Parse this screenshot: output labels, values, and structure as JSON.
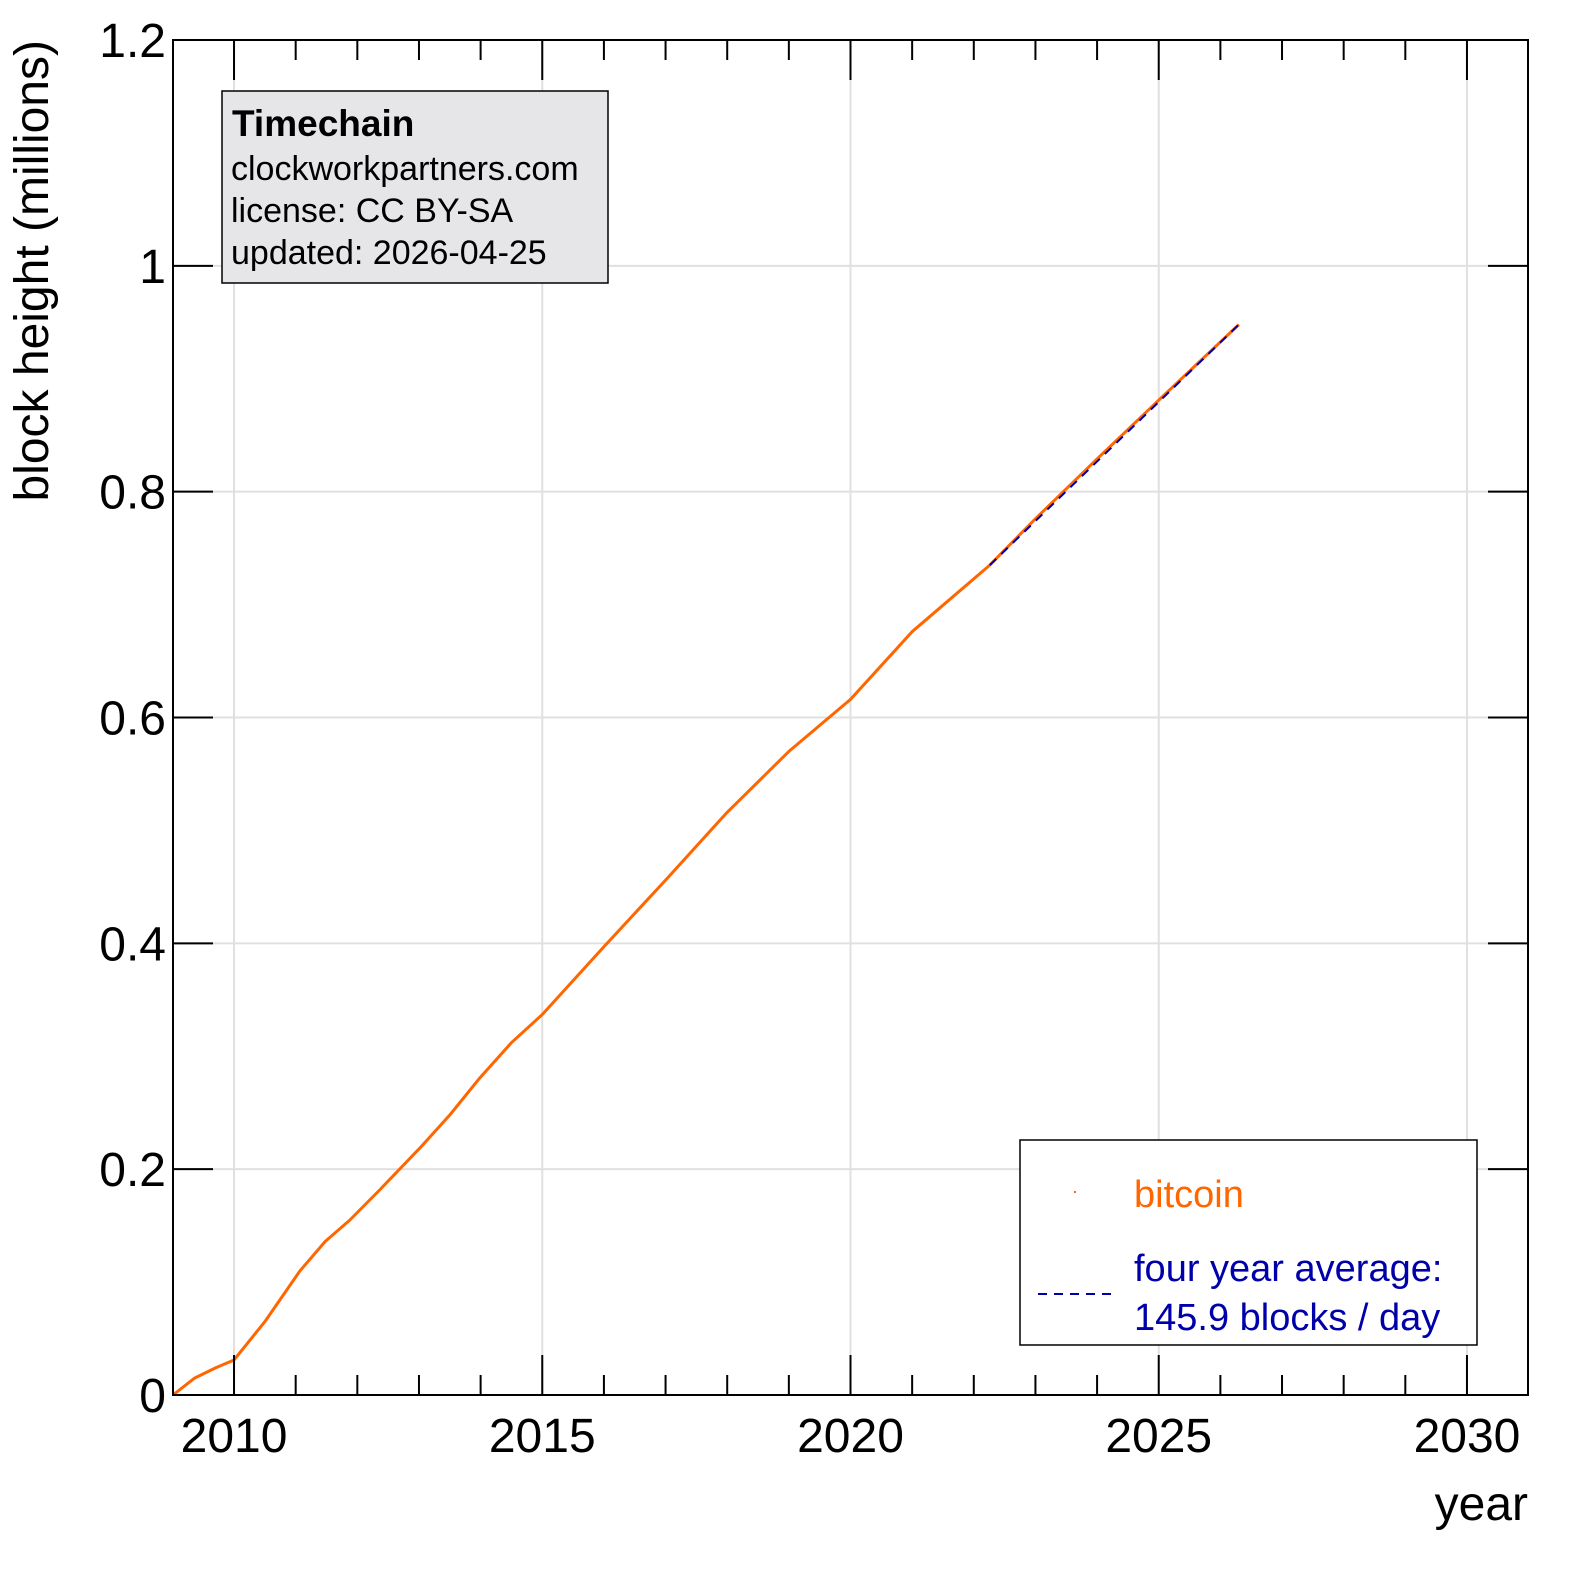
{
  "chart_data": {
    "type": "line",
    "title": "",
    "xlabel": "year",
    "ylabel": "block height (millions)",
    "xlim": [
      2009.01,
      2030.99
    ],
    "ylim": [
      0,
      1.2
    ],
    "grid": true,
    "x_ticks": [
      2010,
      2015,
      2020,
      2025,
      2030
    ],
    "x_tick_labels": [
      "2010",
      "2015",
      "2020",
      "2025",
      "2030"
    ],
    "y_ticks": [
      0,
      0.2,
      0.4,
      0.6,
      0.8,
      1,
      1.2
    ],
    "y_tick_labels": [
      "0",
      "0.2",
      "0.4",
      "0.6",
      "0.8",
      "1",
      "1.2"
    ],
    "legend_position": "bottom-right",
    "series": [
      {
        "name": "bitcoin",
        "color": "#ff6600",
        "style": "solid",
        "x": [
          2009.01,
          2009.36,
          2009.7,
          2010.0,
          2010.5,
          2011.07,
          2011.48,
          2011.88,
          2012.37,
          2013.02,
          2013.5,
          2013.99,
          2014.5,
          2015.0,
          2016.0,
          2017.0,
          2018.0,
          2019.0,
          2020.0,
          2021.0,
          2022.26,
          2023.0,
          2024.0,
          2025.0,
          2026.3
        ],
        "y": [
          0,
          0.015,
          0.024,
          0.031,
          0.065,
          0.11,
          0.136,
          0.155,
          0.182,
          0.219,
          0.248,
          0.281,
          0.312,
          0.337,
          0.397,
          0.456,
          0.516,
          0.57,
          0.616,
          0.676,
          0.735,
          0.776,
          0.829,
          0.881,
          0.948
        ]
      },
      {
        "name": "four year average:",
        "name_line2": "145.9 blocks / day",
        "color": "#0000aa",
        "style": "dashed",
        "x": [
          2022.26,
          2026.3
        ],
        "y": [
          0.735,
          0.948
        ]
      }
    ]
  },
  "info_box": {
    "title": "Timechain",
    "line1": "clockworkpartners.com",
    "line2": "license: CC BY-SA",
    "line3": "updated: 2026-04-25"
  }
}
